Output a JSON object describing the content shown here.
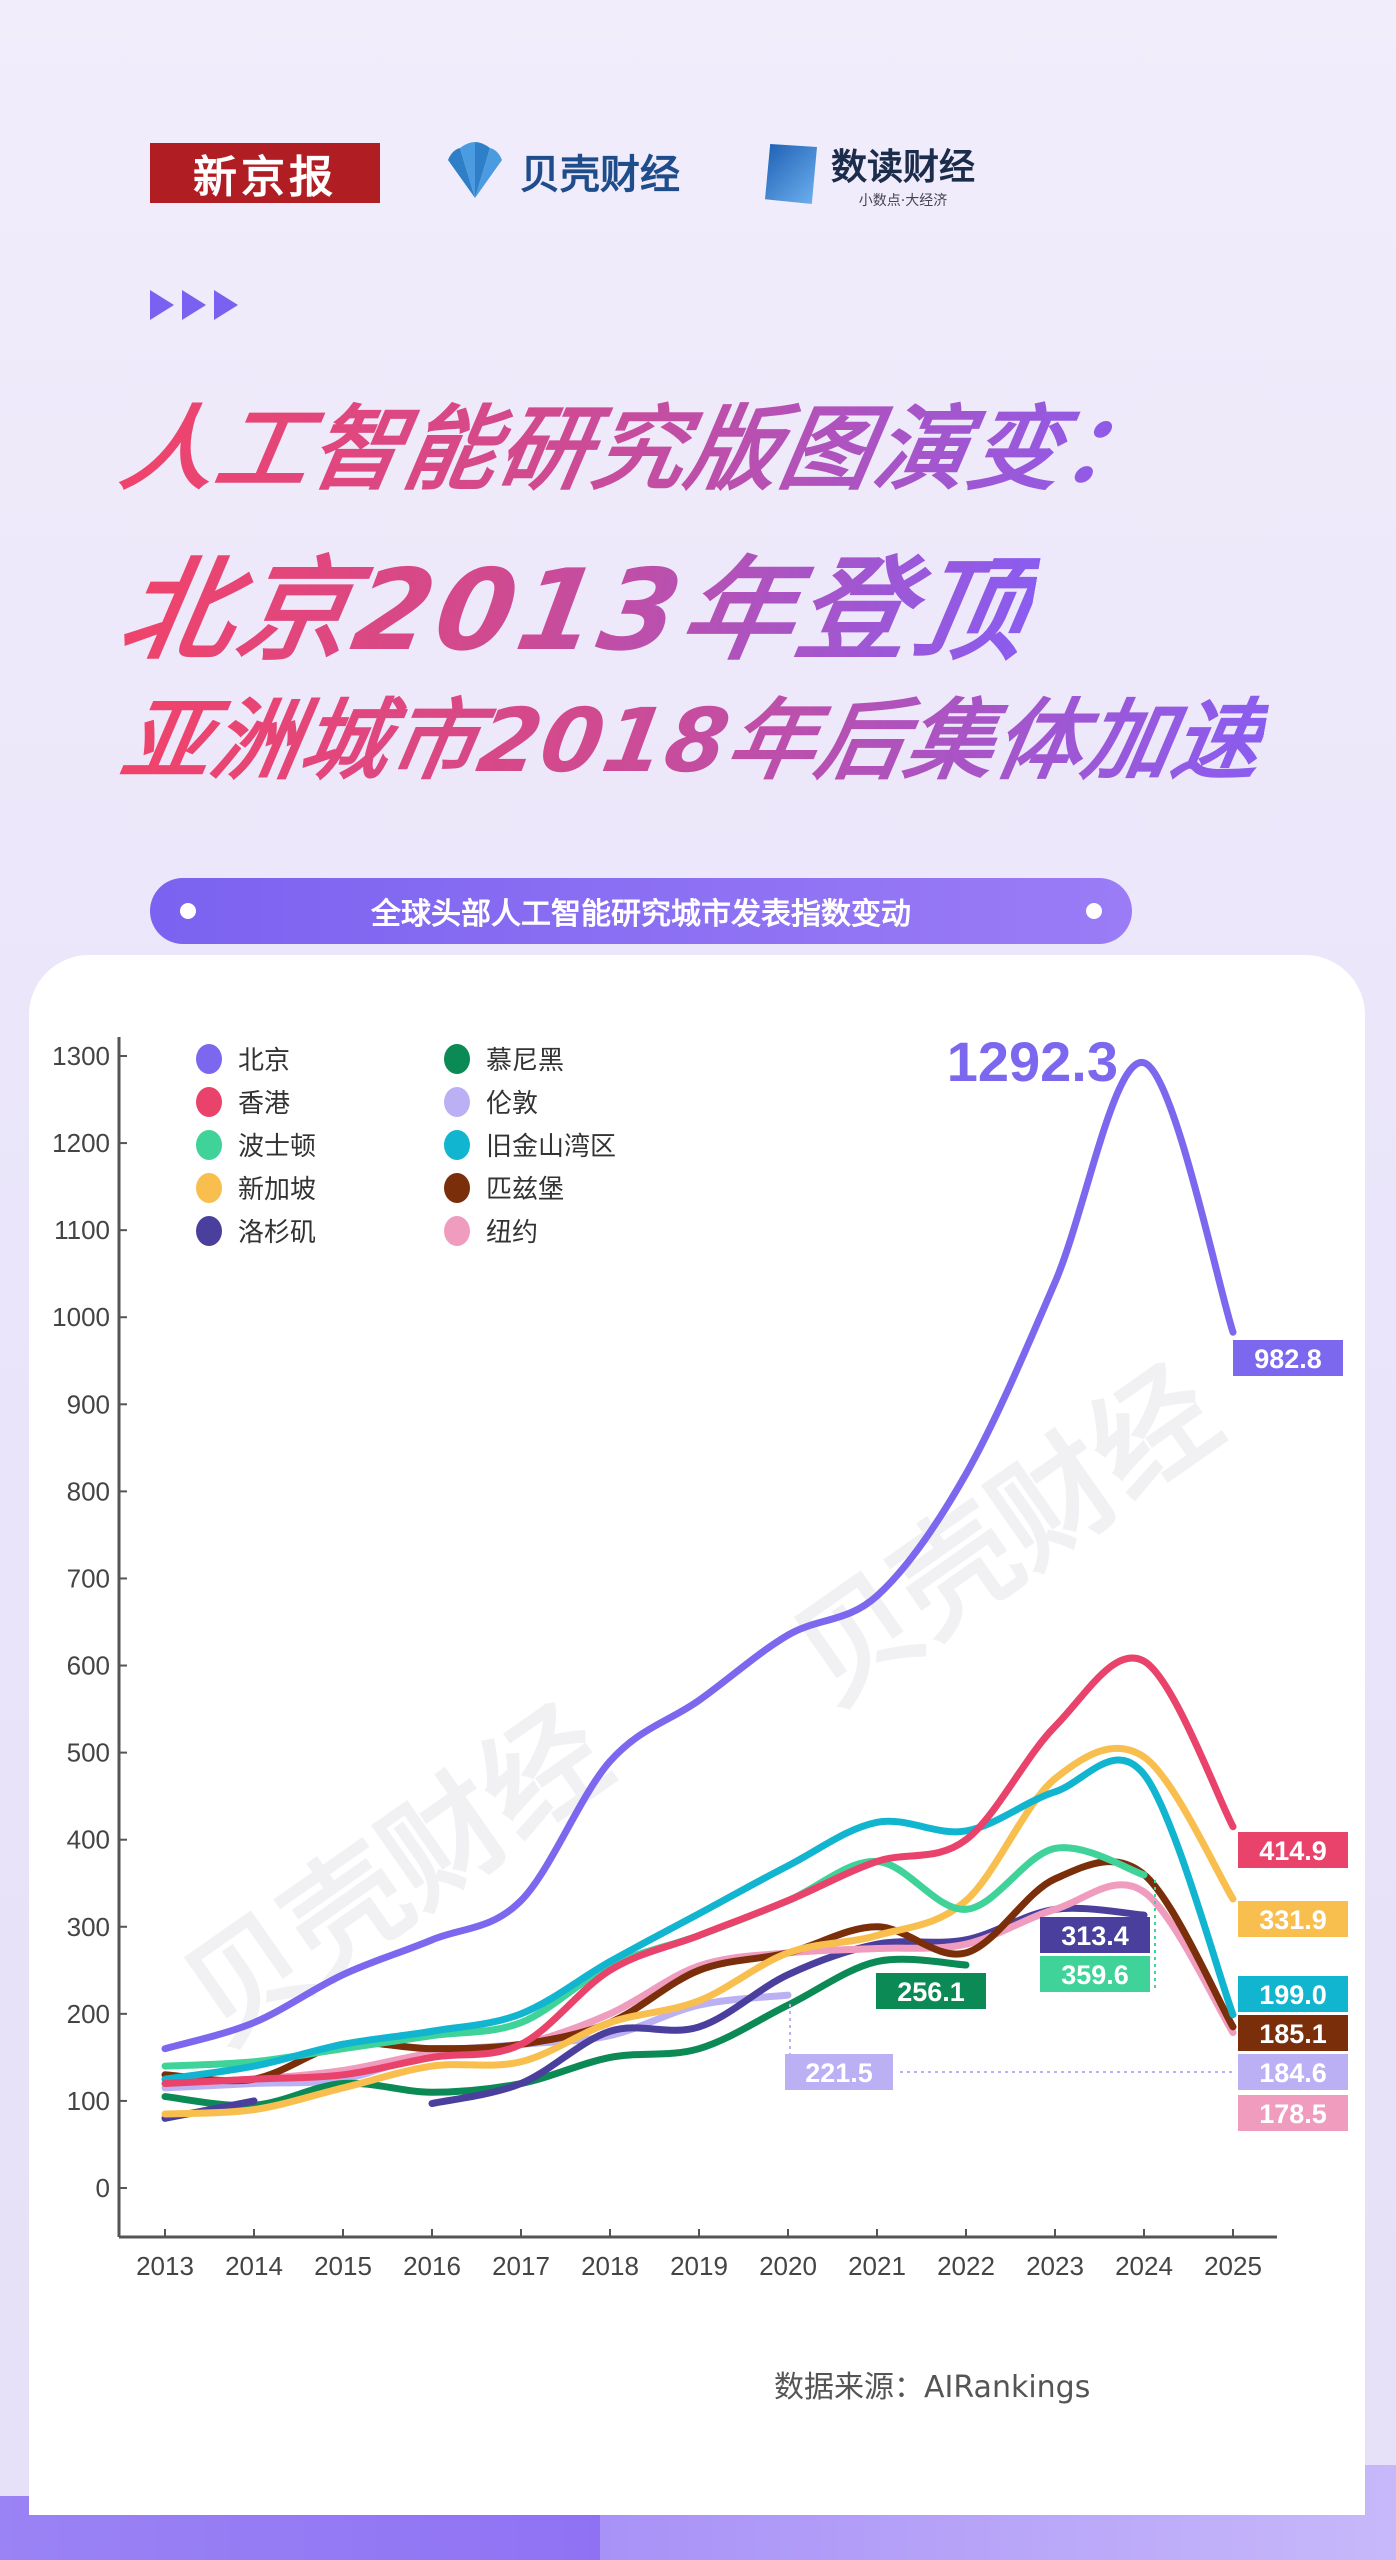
{
  "logos": {
    "xinjingbao": "新京报",
    "beike": "贝壳财经",
    "shudu": "数读财经",
    "shudu_slogan": "小数点·大经济"
  },
  "title": {
    "line1": "人工智能研究版图演变：",
    "line2": "北京2013年登顶",
    "line3": "亚洲城市2018年后集体加速"
  },
  "watermark": "贝壳财经",
  "footer": {
    "source": "数据来源：AIRankings"
  },
  "chart_data": {
    "type": "line",
    "title": "全球头部人工智能研究城市发表指数变动",
    "xlabel": "",
    "ylabel": "",
    "x": [
      2013,
      2014,
      2015,
      2016,
      2017,
      2018,
      2019,
      2020,
      2021,
      2022,
      2023,
      2024,
      2025
    ],
    "x_ticks": [
      "2013",
      "2014",
      "2015",
      "2016",
      "2017",
      "2018",
      "2019",
      "2020",
      "2021",
      "2022",
      "2023",
      "2024",
      "2025"
    ],
    "y_ticks": [
      "0",
      "100",
      "200",
      "300",
      "400",
      "500",
      "600",
      "700",
      "800",
      "900",
      "1000",
      "1100",
      "1200",
      "1300"
    ],
    "ylim": [
      0,
      1300
    ],
    "grid": false,
    "legend": "top-left",
    "series": [
      {
        "name": "北京",
        "color": "#7b68ee",
        "values": [
          160,
          190,
          245,
          285,
          330,
          490,
          560,
          635,
          680,
          820,
          1040,
          1292.3,
          982.8
        ],
        "end_label": "982.8",
        "peak_label": "1292.3"
      },
      {
        "name": "香港",
        "color": "#e9436b",
        "values": [
          120,
          125,
          130,
          150,
          165,
          250,
          290,
          330,
          375,
          400,
          530,
          605,
          414.9
        ],
        "end_label": "414.9"
      },
      {
        "name": "波士顿",
        "color": "#3fd39a",
        "values": [
          140,
          145,
          160,
          175,
          190,
          255,
          290,
          330,
          375,
          320,
          390,
          359.6,
          null
        ],
        "end_label": "359.6"
      },
      {
        "name": "新加坡",
        "color": "#f8bf4f",
        "values": [
          85,
          90,
          115,
          140,
          145,
          190,
          215,
          270,
          290,
          330,
          470,
          495,
          331.9
        ],
        "end_label": "331.9"
      },
      {
        "name": "洛杉矶",
        "color": "#4b3f9e",
        "values": [
          80,
          100,
          null,
          97,
          120,
          180,
          185,
          245,
          280,
          285,
          320,
          313.4,
          null
        ],
        "end_label": "313.4"
      },
      {
        "name": "慕尼黑",
        "color": "#0b8a55",
        "values": [
          105,
          95,
          120,
          110,
          120,
          150,
          160,
          210,
          260,
          256.1,
          null,
          null,
          null
        ],
        "end_label": "256.1"
      },
      {
        "name": "伦敦",
        "color": "#bcb0f5",
        "values": [
          115,
          120,
          125,
          155,
          165,
          175,
          210,
          221.5,
          null,
          null,
          null,
          null,
          184.6
        ],
        "end_label": "184.6",
        "mid_label": "221.5"
      },
      {
        "name": "旧金山湾区",
        "color": "#12b5cf",
        "values": [
          125,
          140,
          165,
          180,
          200,
          260,
          315,
          370,
          420,
          410,
          455,
          475,
          199.0
        ],
        "end_label": "199.0"
      },
      {
        "name": "匹兹堡",
        "color": "#7a2e0a",
        "values": [
          130,
          125,
          165,
          160,
          165,
          190,
          250,
          270,
          300,
          270,
          355,
          360,
          185.1
        ],
        "end_label": "185.1"
      },
      {
        "name": "纽约",
        "color": "#f09cbf",
        "values": [
          120,
          125,
          135,
          155,
          165,
          200,
          255,
          270,
          275,
          280,
          320,
          340,
          178.5
        ],
        "end_label": "178.5"
      }
    ]
  }
}
